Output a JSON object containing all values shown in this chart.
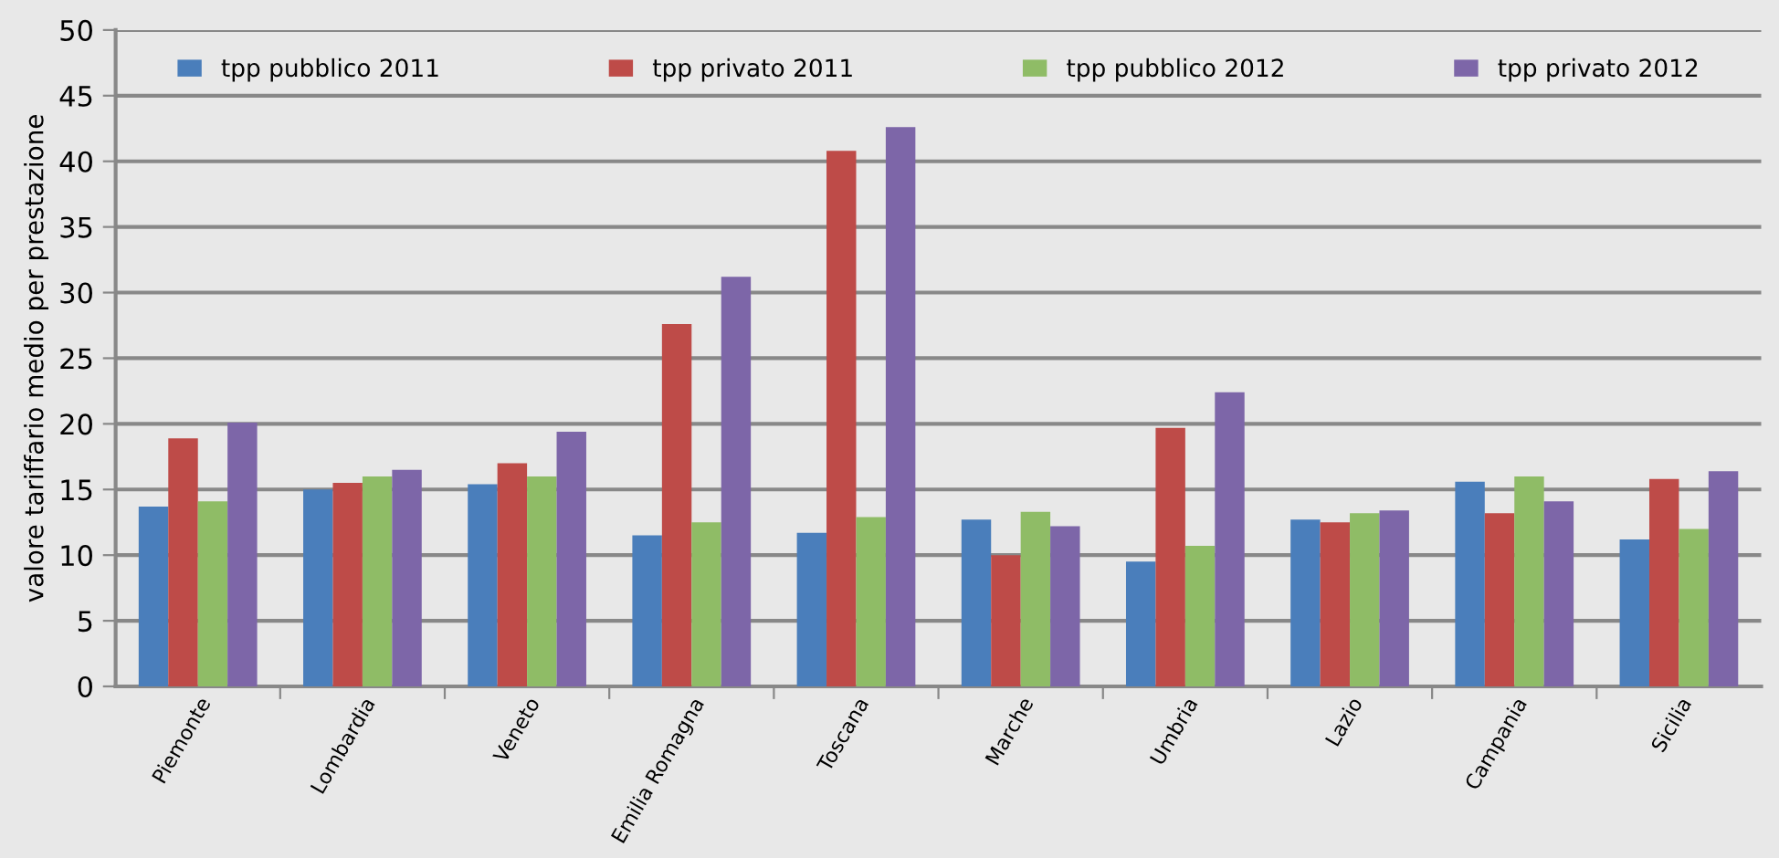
{
  "chart_data": {
    "type": "bar",
    "ylabel": "valore tariffario medio per prestazione",
    "categories": [
      "Piemonte",
      "Lombardia",
      "Veneto",
      "Emilia Romagna",
      "Toscana",
      "Marche",
      "Umbria",
      "Lazio",
      "Campania",
      "Sicilia"
    ],
    "series": [
      {
        "name": "tpp pubblico 2011",
        "color": "#4a7ebb",
        "values": [
          13.7,
          15.0,
          15.4,
          11.5,
          11.7,
          12.7,
          9.5,
          12.7,
          15.6,
          11.2
        ]
      },
      {
        "name": "tpp privato 2011",
        "color": "#be4b48",
        "values": [
          18.9,
          15.5,
          17.0,
          27.6,
          40.8,
          10.0,
          19.7,
          12.5,
          13.2,
          15.8
        ]
      },
      {
        "name": "tpp pubblico 2012",
        "color": "#8fbc66",
        "values": [
          14.1,
          16.0,
          16.0,
          12.5,
          12.9,
          13.3,
          10.7,
          13.2,
          16.0,
          12.0
        ]
      },
      {
        "name": "tpp privato 2012",
        "color": "#7d66a8",
        "values": [
          20.1,
          16.5,
          19.4,
          31.2,
          42.6,
          12.2,
          22.4,
          13.4,
          14.1,
          16.4
        ]
      }
    ],
    "ylim": [
      0,
      50
    ],
    "yticks": [
      0,
      5,
      10,
      15,
      20,
      25,
      30,
      35,
      40,
      45,
      50
    ],
    "grid": "y",
    "legend": "top"
  }
}
